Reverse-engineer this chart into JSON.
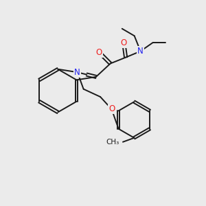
{
  "bg_color": "#ebebeb",
  "bond_color": "#1a1a1a",
  "N_color": "#2020ee",
  "O_color": "#ee2020",
  "font_size": 8.5,
  "line_width": 1.4,
  "figsize": [
    3.0,
    3.0
  ],
  "dpi": 100,
  "xlim": [
    0,
    10
  ],
  "ylim": [
    0,
    10
  ]
}
